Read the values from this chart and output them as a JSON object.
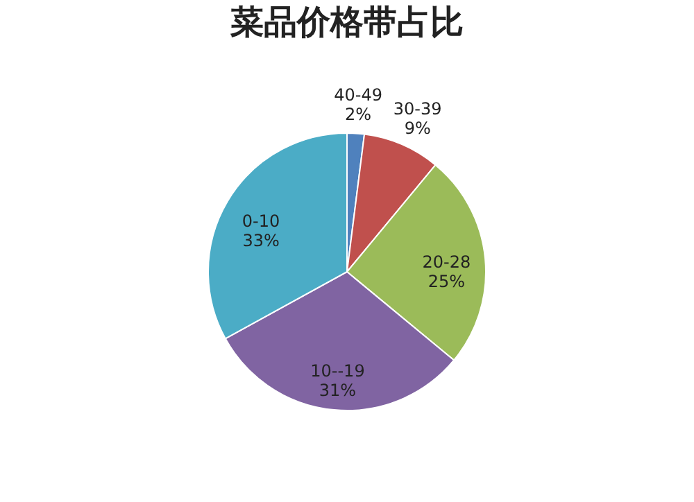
{
  "chart_data": {
    "type": "pie",
    "title": "菜品价格带占比",
    "categories": [
      "40-49",
      "30-39",
      "20-28",
      "10--19",
      "0-10"
    ],
    "values": [
      2,
      9,
      25,
      31,
      33
    ],
    "colors": [
      "#4f81bd",
      "#c0504d",
      "#9bbb59",
      "#8064a2",
      "#4bacc6"
    ],
    "value_labels": [
      "2%",
      "9%",
      "25%",
      "31%",
      "33%"
    ],
    "legend": false
  }
}
